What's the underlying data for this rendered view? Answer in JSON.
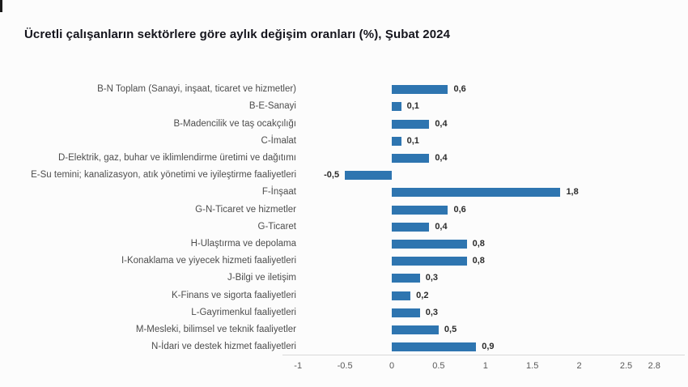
{
  "title": "Ücretli çalışanların sektörlere göre aylık değişim oranları (%), Şubat 2024",
  "colors": {
    "bar": "#2e75b0",
    "axis_line": "#d9d9d9",
    "title_text": "#15151d",
    "category_text": "#4d4d4d",
    "value_text": "#2b2b2b",
    "tick_text": "#595959",
    "background": "#fcfcfc"
  },
  "chart_data": {
    "type": "bar",
    "orientation": "horizontal",
    "title": "Ücretli çalışanların sektörlere göre aylık değişim oranları (%), Şubat 2024",
    "xlabel": "",
    "ylabel": "",
    "grid": false,
    "legend": false,
    "xlim": [
      -1,
      2.8
    ],
    "xticks": [
      -1,
      -0.5,
      0,
      0.5,
      1,
      1.5,
      2,
      2.5,
      2.8
    ],
    "xtick_labels": [
      "-1",
      "-0.5",
      "0",
      "0.5",
      "1",
      "1.5",
      "2",
      "2.5",
      "2.8"
    ],
    "categories": [
      "B-N Toplam (Sanayi, inşaat, ticaret ve hizmetler)",
      "B-E-Sanayi",
      "B-Madencilik ve taş ocakçılığı",
      "C-İmalat",
      "D-Elektrik, gaz, buhar ve iklimlendirme üretimi ve dağıtımı",
      "E-Su temini; kanalizasyon, atık yönetimi ve iyileştirme faaliyetleri",
      "F-İnşaat",
      "G-N-Ticaret ve hizmetler",
      "G-Ticaret",
      "H-Ulaştırma ve depolama",
      "I-Konaklama ve yiyecek hizmeti faaliyetleri",
      "J-Bilgi ve iletişim",
      "K-Finans ve sigorta faaliyetleri",
      "L-Gayrimenkul faaliyetleri",
      "M-Mesleki, bilimsel ve teknik faaliyetler",
      "N-İdari ve destek hizmet faaliyetleri"
    ],
    "values": [
      0.6,
      0.1,
      0.4,
      0.1,
      0.4,
      -0.5,
      1.8,
      0.6,
      0.4,
      0.8,
      0.8,
      0.3,
      0.2,
      0.3,
      0.5,
      0.9
    ],
    "value_labels": [
      "0,6",
      "0,1",
      "0,4",
      "0,1",
      "0,4",
      "-0,5",
      "1,8",
      "0,6",
      "0,4",
      "0,8",
      "0,8",
      "0,3",
      "0,2",
      "0,3",
      "0,5",
      "0,9"
    ]
  }
}
